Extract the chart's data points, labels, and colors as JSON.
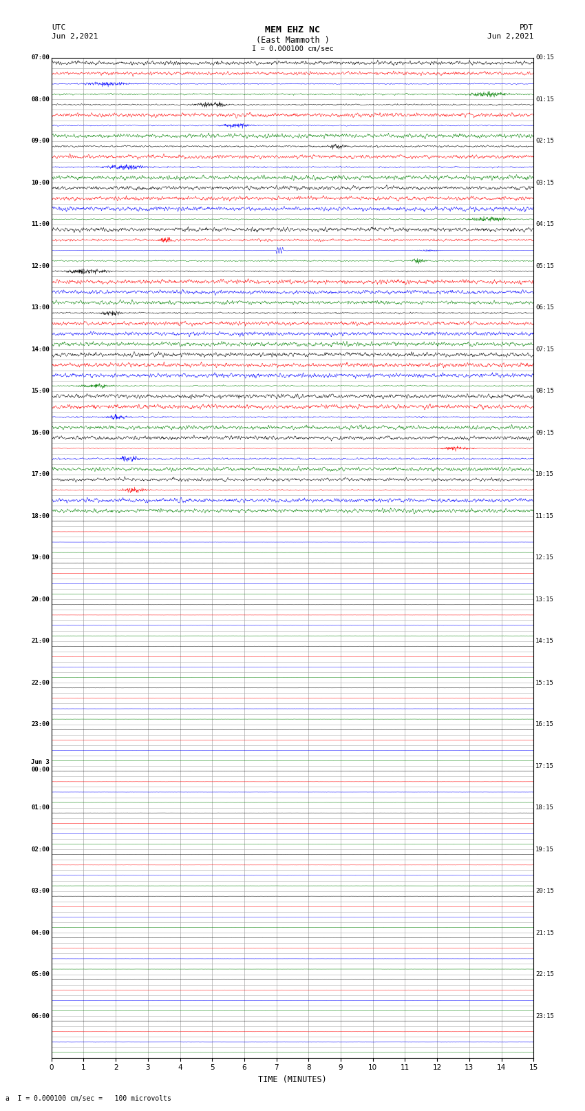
{
  "title_line1": "MEM EHZ NC",
  "title_line2": "(East Mammoth )",
  "scale_text": "I = 0.000100 cm/sec",
  "left_label": "UTC",
  "left_date": "Jun 2,2021",
  "right_label": "PDT",
  "right_date": "Jun 2,2021",
  "xlabel": "TIME (MINUTES)",
  "footer": "a  I = 0.000100 cm/sec =   100 microvolts",
  "xlim": [
    0,
    15
  ],
  "xticks": [
    0,
    1,
    2,
    3,
    4,
    5,
    6,
    7,
    8,
    9,
    10,
    11,
    12,
    13,
    14,
    15
  ],
  "colors": [
    "black",
    "red",
    "blue",
    "green"
  ],
  "fig_width": 8.5,
  "fig_height": 16.13,
  "bg_color": "white",
  "grid_color": "#aaaaaa",
  "utc_hour_labels": [
    "07:00",
    "08:00",
    "09:00",
    "10:00",
    "11:00",
    "12:00",
    "13:00",
    "14:00",
    "15:00",
    "16:00",
    "17:00",
    "18:00",
    "19:00",
    "20:00",
    "21:00",
    "22:00",
    "23:00",
    "Jun 3\n00:00",
    "01:00",
    "02:00",
    "03:00",
    "04:00",
    "05:00",
    "06:00"
  ],
  "pdt_hour_labels": [
    "00:15",
    "01:15",
    "02:15",
    "03:15",
    "04:15",
    "05:15",
    "06:15",
    "07:15",
    "08:15",
    "09:15",
    "10:15",
    "11:15",
    "12:15",
    "13:15",
    "14:15",
    "15:15",
    "16:15",
    "17:15",
    "18:15",
    "19:15",
    "20:15",
    "21:15",
    "22:15",
    "23:15"
  ],
  "num_hours": 24,
  "traces_per_hour": 4,
  "active_hours": 11,
  "noise_scale_active": 0.025,
  "noise_scale_inactive": 0.003,
  "spike_hour": 4,
  "spike_minute": 7.1,
  "spike_color_idx": 2,
  "spike_amplitude": 0.35
}
